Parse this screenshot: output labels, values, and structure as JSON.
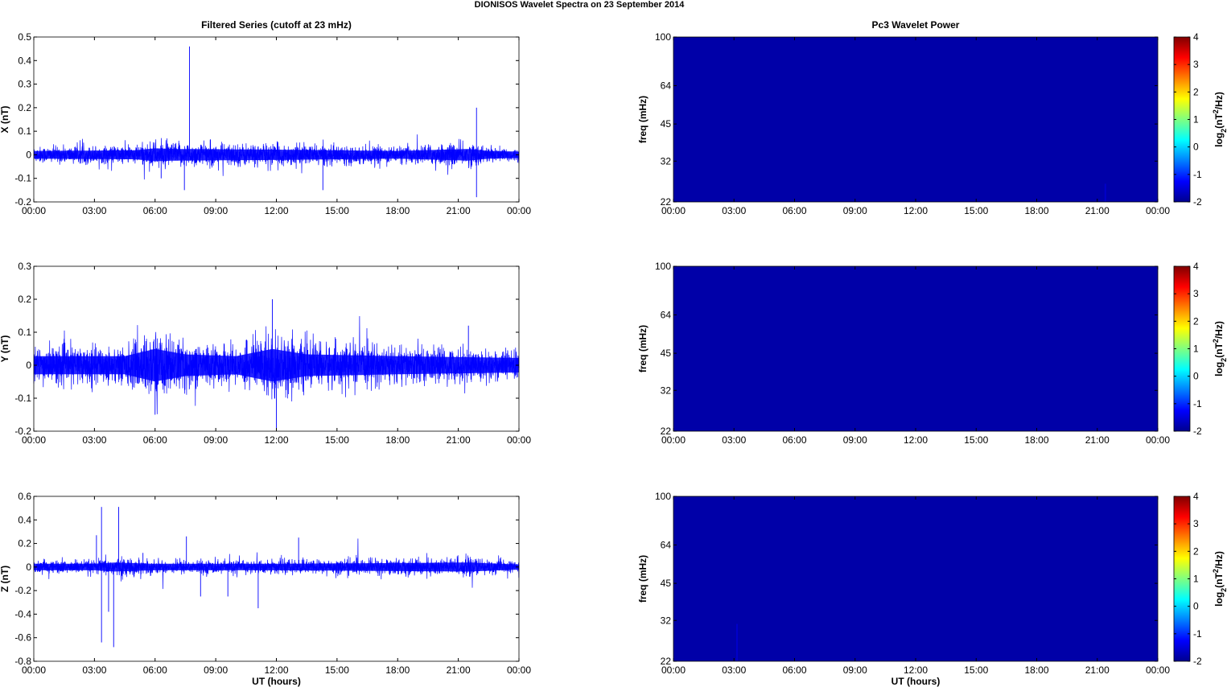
{
  "title": "DIONISOS Wavelet Spectra on 23 September 2014",
  "panels": {
    "left_title": "Filtered Series (cutoff at 23 mHz)",
    "right_title": "Pc3 Wavelet Power"
  },
  "colors": {
    "trace": "#0000ff",
    "power_background": "#0000a8",
    "axis": "#000000"
  },
  "chart_data": [
    {
      "type": "line",
      "title": "Filtered Series (cutoff at 23 mHz)",
      "xlabel": "",
      "ylabel": "X (nT)",
      "xtick_labels": [
        "00:00",
        "03:00",
        "06:00",
        "09:00",
        "12:00",
        "15:00",
        "18:00",
        "21:00",
        "00:00"
      ],
      "xlim_hours": [
        0,
        24
      ],
      "ylim": [
        -0.2,
        0.5
      ],
      "yticks": [
        -0.2,
        -0.1,
        0,
        0.1,
        0.2,
        0.3,
        0.4,
        0.5
      ],
      "ytick_labels": [
        "-0.2",
        "-0.1",
        "0",
        "0.1",
        "0.2",
        "0.3",
        "0.4",
        "0.5"
      ],
      "noise_envelope": [
        {
          "t": 0,
          "amp": 0.03
        },
        {
          "t": 5,
          "amp": 0.035
        },
        {
          "t": 6,
          "amp": 0.05
        },
        {
          "t": 7,
          "amp": 0.045
        },
        {
          "t": 12,
          "amp": 0.04
        },
        {
          "t": 18,
          "amp": 0.03
        },
        {
          "t": 21.5,
          "amp": 0.045
        },
        {
          "t": 22.5,
          "amp": 0.03
        },
        {
          "t": 24,
          "amp": 0.025
        }
      ],
      "spikes": [
        {
          "t": 7.7,
          "y": 0.46
        },
        {
          "t": 7.45,
          "y": -0.15
        },
        {
          "t": 21.9,
          "y": 0.2
        },
        {
          "t": 21.9,
          "y": -0.18
        },
        {
          "t": 14.3,
          "y": -0.15
        },
        {
          "t": 6.3,
          "y": -0.1
        }
      ],
      "grid": false
    },
    {
      "type": "line",
      "xlabel": "",
      "ylabel": "Y (nT)",
      "xtick_labels": [
        "00:00",
        "03:00",
        "06:00",
        "09:00",
        "12:00",
        "15:00",
        "18:00",
        "21:00",
        "00:00"
      ],
      "xlim_hours": [
        0,
        24
      ],
      "ylim": [
        -0.2,
        0.3
      ],
      "yticks": [
        -0.2,
        -0.1,
        0,
        0.1,
        0.2,
        0.3
      ],
      "ytick_labels": [
        "-0.2",
        "-0.1",
        "0",
        "0.1",
        "0.2",
        "0.3"
      ],
      "noise_envelope": [
        {
          "t": 0,
          "amp": 0.05
        },
        {
          "t": 4.5,
          "amp": 0.05
        },
        {
          "t": 6,
          "amp": 0.09
        },
        {
          "t": 7.5,
          "amp": 0.06
        },
        {
          "t": 10,
          "amp": 0.05
        },
        {
          "t": 11.8,
          "amp": 0.09
        },
        {
          "t": 13.5,
          "amp": 0.06
        },
        {
          "t": 18,
          "amp": 0.05
        },
        {
          "t": 24,
          "amp": 0.04
        }
      ],
      "spikes": [
        {
          "t": 11.8,
          "y": 0.2
        },
        {
          "t": 12.0,
          "y": -0.2
        },
        {
          "t": 6.0,
          "y": -0.15
        },
        {
          "t": 21.5,
          "y": 0.12
        }
      ],
      "grid": false
    },
    {
      "type": "line",
      "xlabel": "UT (hours)",
      "ylabel": "Z (nT)",
      "xtick_labels": [
        "00:00",
        "03:00",
        "06:00",
        "09:00",
        "12:00",
        "15:00",
        "18:00",
        "21:00",
        "00:00"
      ],
      "xlim_hours": [
        0,
        24
      ],
      "ylim": [
        -0.8,
        0.6
      ],
      "yticks": [
        -0.8,
        -0.6,
        -0.4,
        -0.2,
        0,
        0.2,
        0.4,
        0.6
      ],
      "ytick_labels": [
        "-0.8",
        "-0.6",
        "-0.4",
        "-0.2",
        "0",
        "0.2",
        "0.4",
        "0.6"
      ],
      "noise_envelope": [
        {
          "t": 0,
          "amp": 0.05
        },
        {
          "t": 3,
          "amp": 0.05
        },
        {
          "t": 4,
          "amp": 0.07
        },
        {
          "t": 6,
          "amp": 0.05
        },
        {
          "t": 12,
          "amp": 0.05
        },
        {
          "t": 17,
          "amp": 0.06
        },
        {
          "t": 21.5,
          "amp": 0.07
        },
        {
          "t": 24,
          "amp": 0.04
        }
      ],
      "spikes": [
        {
          "t": 3.35,
          "y": 0.51
        },
        {
          "t": 3.35,
          "y": -0.64
        },
        {
          "t": 4.2,
          "y": 0.51
        },
        {
          "t": 3.95,
          "y": -0.68
        },
        {
          "t": 3.1,
          "y": 0.27
        },
        {
          "t": 3.7,
          "y": -0.38
        },
        {
          "t": 7.55,
          "y": 0.26
        },
        {
          "t": 8.25,
          "y": -0.25
        },
        {
          "t": 11.1,
          "y": -0.35
        },
        {
          "t": 13.1,
          "y": 0.25
        },
        {
          "t": 9.6,
          "y": -0.25
        },
        {
          "t": 5.4,
          "y": 0.12
        }
      ],
      "grid": false
    },
    {
      "type": "heatmap",
      "title": "Pc3 Wavelet Power",
      "xlabel": "",
      "ylabel": "freq (mHz)",
      "xtick_labels": [
        "00:00",
        "03:00",
        "06:00",
        "09:00",
        "12:00",
        "15:00",
        "18:00",
        "21:00",
        "00:00"
      ],
      "xlim_hours": [
        0,
        24
      ],
      "ylim_mhz": [
        22,
        100
      ],
      "yscale": "log",
      "yticks": [
        22,
        32,
        45,
        64,
        100
      ],
      "ytick_labels": [
        "22",
        "32",
        "45",
        "64",
        "100"
      ],
      "colorbar": {
        "label_main": "log",
        "label_sub": "2",
        "label_mid": "(nT",
        "label_sup": "2",
        "label_end": "/Hz)",
        "range": [
          -2,
          4
        ],
        "ticks": [
          -2,
          -1,
          0,
          1,
          2,
          3,
          4
        ],
        "tick_labels": [
          "-2",
          "-1",
          "0",
          "1",
          "2",
          "3",
          "4"
        ]
      },
      "power_value": -2,
      "faint_features": [
        {
          "t": 21.4,
          "f0": 22,
          "f1": 26
        }
      ]
    },
    {
      "type": "heatmap",
      "xlabel": "",
      "ylabel": "freq (mHz)",
      "xtick_labels": [
        "00:00",
        "03:00",
        "06:00",
        "09:00",
        "12:00",
        "15:00",
        "18:00",
        "21:00",
        "00:00"
      ],
      "xlim_hours": [
        0,
        24
      ],
      "ylim_mhz": [
        22,
        100
      ],
      "yscale": "log",
      "yticks": [
        22,
        32,
        45,
        64,
        100
      ],
      "ytick_labels": [
        "22",
        "32",
        "45",
        "64",
        "100"
      ],
      "colorbar": {
        "label_main": "log",
        "label_sub": "2",
        "label_mid": "(nT",
        "label_sup": "2",
        "label_end": "/Hz)",
        "range": [
          -2,
          4
        ],
        "ticks": [
          -2,
          -1,
          0,
          1,
          2,
          3,
          4
        ],
        "tick_labels": [
          "-2",
          "-1",
          "0",
          "1",
          "2",
          "3",
          "4"
        ]
      },
      "power_value": -2,
      "faint_features": []
    },
    {
      "type": "heatmap",
      "xlabel": "UT (hours)",
      "ylabel": "freq (mHz)",
      "xtick_labels": [
        "00:00",
        "03:00",
        "06:00",
        "09:00",
        "12:00",
        "15:00",
        "18:00",
        "21:00",
        "00:00"
      ],
      "xlim_hours": [
        0,
        24
      ],
      "ylim_mhz": [
        22,
        100
      ],
      "yscale": "log",
      "yticks": [
        22,
        32,
        45,
        64,
        100
      ],
      "ytick_labels": [
        "22",
        "32",
        "45",
        "64",
        "100"
      ],
      "colorbar": {
        "label_main": "log",
        "label_sub": "2",
        "label_mid": "(nT",
        "label_sup": "2",
        "label_end": "/Hz)",
        "range": [
          -2,
          4
        ],
        "ticks": [
          -2,
          -1,
          0,
          1,
          2,
          3,
          4
        ],
        "tick_labels": [
          "-2",
          "-1",
          "0",
          "1",
          "2",
          "3",
          "4"
        ]
      },
      "power_value": -2,
      "faint_features": [
        {
          "t": 3.15,
          "f0": 22,
          "f1": 31
        }
      ]
    }
  ]
}
